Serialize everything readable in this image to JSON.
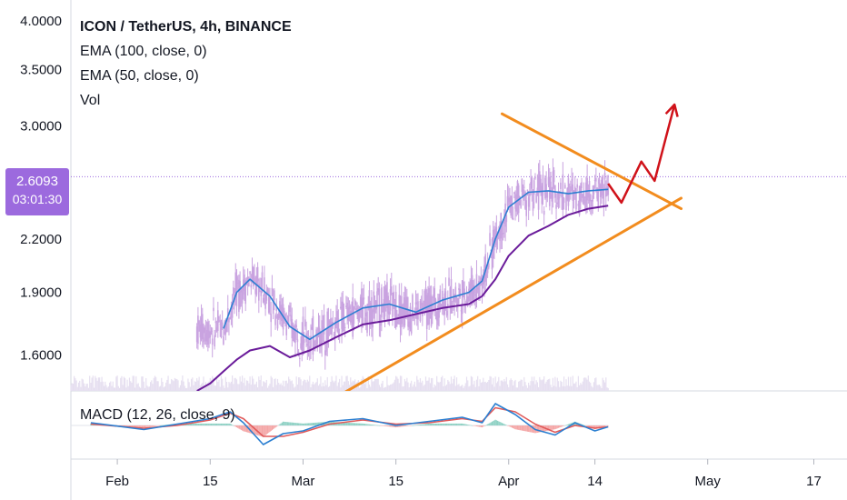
{
  "legend": {
    "title": "ICON / TetherUS, 4h, BINANCE",
    "ema100": "EMA (100, close, 0)",
    "ema50": "EMA (50, close, 0)",
    "vol": "Vol"
  },
  "macd_label": "MACD (12, 26, close, 9)",
  "price_tag": {
    "price": "2.6093",
    "countdown": "03:01:30"
  },
  "colors": {
    "candles": "#c9a3e0",
    "ema_fast": "#2b7fd1",
    "ema_slow": "#6a1b9a",
    "trendline": "#f28c1e",
    "projection": "#d0121a",
    "macd_line": "#2b7fd1",
    "signal_line": "#e05a5a",
    "price_tag": "#9c6ade"
  },
  "chart_data": {
    "type": "line",
    "y_axis": {
      "scale": "log",
      "ticks": [
        "1.6000",
        "1.9000",
        "2.2000",
        "2.6093",
        "3.0000",
        "3.5000",
        "4.0000"
      ],
      "tick_values": [
        1.6,
        1.9,
        2.2,
        3.0,
        3.5,
        4.0
      ],
      "range": [
        1.45,
        4.05
      ]
    },
    "x_axis": {
      "ticks": [
        "Feb",
        "15",
        "Mar",
        "15",
        "Apr",
        "14",
        "May",
        "17"
      ],
      "tick_dates": [
        "2019-02-01",
        "2019-02-15",
        "2019-03-01",
        "2019-03-15",
        "2019-04-01",
        "2019-04-14",
        "2019-05-01",
        "2019-05-17"
      ],
      "range": [
        "2019-01-25",
        "2019-05-22"
      ]
    },
    "current_price": 2.6093,
    "series": [
      {
        "name": "EMA (100, close, 0)",
        "x": [
          "2019-02-13",
          "2019-02-15",
          "2019-02-17",
          "2019-02-19",
          "2019-02-21",
          "2019-02-24",
          "2019-02-27",
          "2019-03-02",
          "2019-03-06",
          "2019-03-10",
          "2019-03-14",
          "2019-03-18",
          "2019-03-22",
          "2019-03-26",
          "2019-03-28",
          "2019-03-30",
          "2019-04-01",
          "2019-04-04",
          "2019-04-07",
          "2019-04-10",
          "2019-04-13",
          "2019-04-16"
        ],
        "y": [
          1.45,
          1.48,
          1.53,
          1.58,
          1.62,
          1.64,
          1.59,
          1.62,
          1.68,
          1.74,
          1.76,
          1.79,
          1.82,
          1.84,
          1.88,
          1.97,
          2.1,
          2.22,
          2.28,
          2.35,
          2.39,
          2.41
        ]
      },
      {
        "name": "EMA (50, close, 0)",
        "x": [
          "2019-02-17",
          "2019-02-19",
          "2019-02-21",
          "2019-02-24",
          "2019-02-27",
          "2019-03-02",
          "2019-03-06",
          "2019-03-10",
          "2019-03-14",
          "2019-03-18",
          "2019-03-22",
          "2019-03-26",
          "2019-03-28",
          "2019-03-30",
          "2019-04-01",
          "2019-04-04",
          "2019-04-07",
          "2019-04-10",
          "2019-04-13",
          "2019-04-16"
        ],
        "y": [
          1.72,
          1.9,
          1.97,
          1.88,
          1.73,
          1.67,
          1.75,
          1.82,
          1.84,
          1.8,
          1.86,
          1.9,
          1.96,
          2.2,
          2.4,
          2.5,
          2.51,
          2.49,
          2.51,
          2.52
        ]
      }
    ],
    "trendlines": [
      {
        "name": "upper",
        "from": [
          "2019-03-31",
          3.1
        ],
        "to": [
          "2019-04-27",
          2.39
        ]
      },
      {
        "name": "lower",
        "from": [
          "2019-03-07",
          1.44
        ],
        "to": [
          "2019-04-27",
          2.46
        ]
      }
    ],
    "projection": {
      "x": [
        "2019-04-16",
        "2019-04-18",
        "2019-04-21",
        "2019-04-23",
        "2019-04-26"
      ],
      "y": [
        2.56,
        2.43,
        2.72,
        2.58,
        3.18
      ]
    },
    "macd": {
      "x": [
        "2019-01-28",
        "2019-02-05",
        "2019-02-10",
        "2019-02-15",
        "2019-02-18",
        "2019-02-20",
        "2019-02-23",
        "2019-02-26",
        "2019-03-01",
        "2019-03-05",
        "2019-03-10",
        "2019-03-15",
        "2019-03-20",
        "2019-03-25",
        "2019-03-28",
        "2019-03-30",
        "2019-04-02",
        "2019-04-05",
        "2019-04-08",
        "2019-04-11",
        "2019-04-14",
        "2019-04-16"
      ],
      "macd": [
        0.02,
        -0.03,
        0.01,
        0.05,
        0.1,
        0.02,
        -0.14,
        -0.06,
        -0.04,
        0.03,
        0.05,
        0.0,
        0.03,
        0.06,
        0.02,
        0.16,
        0.08,
        -0.03,
        -0.07,
        0.02,
        -0.04,
        -0.01
      ],
      "signal": [
        0.01,
        -0.02,
        0.0,
        0.04,
        0.09,
        0.05,
        -0.08,
        -0.08,
        -0.05,
        0.01,
        0.04,
        0.01,
        0.02,
        0.05,
        0.03,
        0.13,
        0.1,
        0.01,
        -0.05,
        0.0,
        -0.02,
        -0.01
      ]
    }
  }
}
